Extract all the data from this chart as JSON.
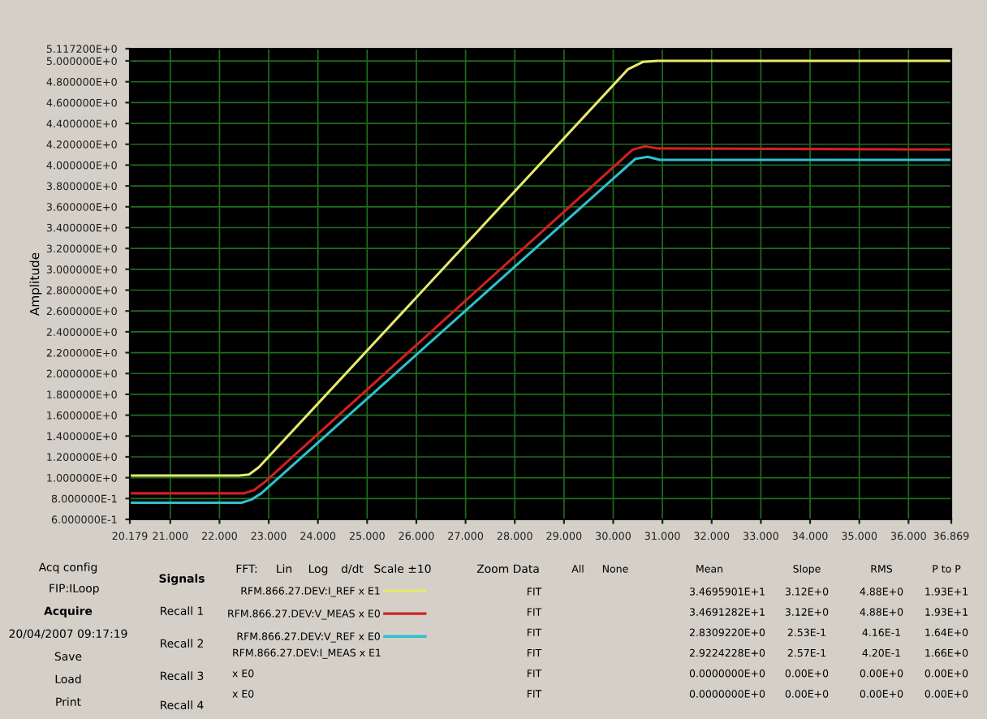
{
  "chart_data": {
    "type": "line",
    "ylabel": "Amplitude",
    "xlim": [
      20.179,
      36.869
    ],
    "xticks": [
      {
        "value": 20.179,
        "label": "20.179"
      },
      {
        "value": 21,
        "label": "21.000"
      },
      {
        "value": 22,
        "label": "22.000"
      },
      {
        "value": 23,
        "label": "23.000"
      },
      {
        "value": 24,
        "label": "24.000"
      },
      {
        "value": 25,
        "label": "25.000"
      },
      {
        "value": 26,
        "label": "26.000"
      },
      {
        "value": 27,
        "label": "27.000"
      },
      {
        "value": 28,
        "label": "28.000"
      },
      {
        "value": 29,
        "label": "29.000"
      },
      {
        "value": 30,
        "label": "30.000"
      },
      {
        "value": 31,
        "label": "31.000"
      },
      {
        "value": 32,
        "label": "32.000"
      },
      {
        "value": 33,
        "label": "33.000"
      },
      {
        "value": 34,
        "label": "34.000"
      },
      {
        "value": 35,
        "label": "35.000"
      },
      {
        "value": 36,
        "label": "36.000"
      },
      {
        "value": 36.869,
        "label": "36.869"
      }
    ],
    "ylim": [
      0.6,
      5.1172
    ],
    "yticks": [
      {
        "value": 0.6,
        "label": "6.000000E-1"
      },
      {
        "value": 0.8,
        "label": "8.000000E-1"
      },
      {
        "value": 1.0,
        "label": "1.000000E+0"
      },
      {
        "value": 1.2,
        "label": "1.200000E+0"
      },
      {
        "value": 1.4,
        "label": "1.400000E+0"
      },
      {
        "value": 1.6,
        "label": "1.600000E+0"
      },
      {
        "value": 1.8,
        "label": "1.800000E+0"
      },
      {
        "value": 2.0,
        "label": "2.000000E+0"
      },
      {
        "value": 2.2,
        "label": "2.200000E+0"
      },
      {
        "value": 2.4,
        "label": "2.400000E+0"
      },
      {
        "value": 2.6,
        "label": "2.600000E+0"
      },
      {
        "value": 2.8,
        "label": "2.800000E+0"
      },
      {
        "value": 3.0,
        "label": "3.000000E+0"
      },
      {
        "value": 3.2,
        "label": "3.200000E+0"
      },
      {
        "value": 3.4,
        "label": "3.400000E+0"
      },
      {
        "value": 3.6,
        "label": "3.600000E+0"
      },
      {
        "value": 3.8,
        "label": "3.800000E+0"
      },
      {
        "value": 4.0,
        "label": "4.000000E+0"
      },
      {
        "value": 4.2,
        "label": "4.200000E+0"
      },
      {
        "value": 4.4,
        "label": "4.400000E+0"
      },
      {
        "value": 4.6,
        "label": "4.600000E+0"
      },
      {
        "value": 4.8,
        "label": "4.800000E+0"
      },
      {
        "value": 5.0,
        "label": "5.000000E+0"
      },
      {
        "value": 5.1172,
        "label": "5.117200E+0"
      }
    ],
    "grid": true,
    "legend": "bottom",
    "marker": "none",
    "line_style": "solid",
    "series": [
      {
        "name": "RFM.866.27.DEV:I_REF x E1",
        "color": "#e8e870",
        "x": [
          20.179,
          22.4,
          22.6,
          22.8,
          30.3,
          30.6,
          30.9,
          36.869
        ],
        "values": [
          1.02,
          1.02,
          1.03,
          1.1,
          4.92,
          4.99,
          5.0,
          5.0
        ]
      },
      {
        "name": "RFM.866.27.DEV:V_MEAS x E0",
        "color": "#d02020",
        "x": [
          20.179,
          22.5,
          22.7,
          22.9,
          30.4,
          30.65,
          30.9,
          36.869
        ],
        "values": [
          0.85,
          0.85,
          0.88,
          0.95,
          4.15,
          4.18,
          4.16,
          4.15
        ]
      },
      {
        "name": "RFM.866.27.DEV:V_REF x E0",
        "color": "#30c0d0",
        "x": [
          20.179,
          22.45,
          22.65,
          22.85,
          30.45,
          30.7,
          30.95,
          36.869
        ],
        "values": [
          0.76,
          0.76,
          0.79,
          0.85,
          4.06,
          4.08,
          4.05,
          4.05
        ]
      }
    ],
    "annotations": [
      "Acq config",
      "FIP:ILoop",
      "Acquire",
      "20/04/2007 09:17:19",
      "Save",
      "Load",
      "Print",
      "Signals",
      "Recall 1",
      "Recall 2",
      "Recall 3",
      "Recall 4",
      "FFT:",
      "Lin",
      "Log",
      "d/dt",
      "Scale ±10",
      "Zoom Data",
      "RFM.866.27.DEV:I_MEAS x E1",
      "x E0",
      "x E0",
      "FIT",
      "FIT",
      "FIT",
      "FIT",
      "FIT",
      "FIT",
      "All",
      "None",
      "Mean",
      "Slope",
      "RMS",
      "P to P",
      "3.4695901E+1",
      "3.12E+0",
      "4.88E+0",
      "1.93E+1",
      "3.4691282E+1",
      "3.12E+0",
      "4.88E+0",
      "1.93E+1",
      "2.8309220E+0",
      "2.53E-1",
      "4.16E-1",
      "1.64E+0",
      "2.9224228E+0",
      "2.57E-1",
      "4.20E-1",
      "1.66E+0",
      "0.0000000E+0",
      "0.00E+0",
      "0.00E+0",
      "0.00E+0",
      "0.0000000E+0",
      "0.00E+0",
      "0.00E+0",
      "0.00E+0"
    ]
  }
}
